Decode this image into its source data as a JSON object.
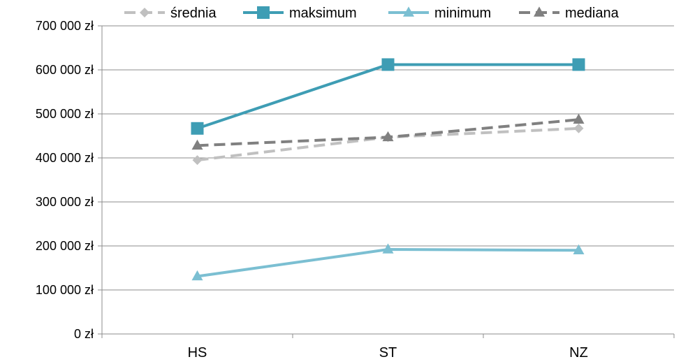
{
  "chart_data": {
    "type": "line",
    "categories": [
      "HS",
      "ST",
      "NZ"
    ],
    "y_ticks": [
      "0 zł",
      "100 000 zł",
      "200 000 zł",
      "300 000 zł",
      "400 000 zł",
      "500 000 zł",
      "600 000 zł",
      "700 000 zł"
    ],
    "ylim": [
      0,
      700000
    ],
    "grid": true,
    "legend_position": "top",
    "series": [
      {
        "name": "średnia",
        "values": [
          395000,
          447000,
          467000
        ],
        "color": "#c0c0c0",
        "dash": "dashed",
        "marker": "diamond"
      },
      {
        "name": "maksimum",
        "values": [
          467000,
          612000,
          612000
        ],
        "color": "#3e9db4",
        "dash": "solid",
        "marker": "square"
      },
      {
        "name": "minimum",
        "values": [
          131000,
          192000,
          190000
        ],
        "color": "#7bbfd2",
        "dash": "solid",
        "marker": "triangle"
      },
      {
        "name": "mediana",
        "values": [
          428000,
          447000,
          487000
        ],
        "color": "#808080",
        "dash": "dashed",
        "marker": "triangle"
      }
    ]
  }
}
